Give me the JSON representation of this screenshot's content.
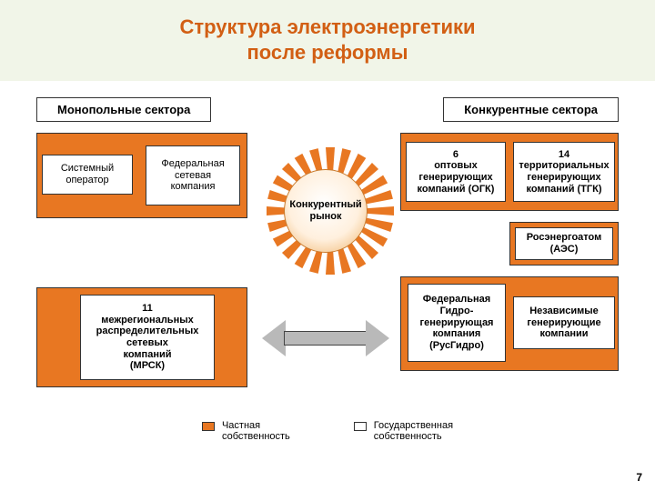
{
  "title": {
    "line1": "Структура электроэнергетики",
    "line2": "после реформы",
    "color": "#d25f14",
    "fontsize": 22,
    "band_bg": "#f1f5e8"
  },
  "sector_headers": {
    "left": "Монопольные сектора",
    "right": "Конкурентные сектора"
  },
  "colors": {
    "orange": "#e87722",
    "white": "#ffffff",
    "arrow": "#b9b9b9",
    "border": "#333333"
  },
  "boxes": {
    "systemOperator": "Системный\nоператор",
    "federalGrid": "Федеральная\nсетевая\nкомпания",
    "sunLabel": "Конкурентный рынок",
    "ogk": "6\nоптовых\nгенерирующих\nкомпаний (ОГК)",
    "tgk": "14\nтерриториальных\nгенерирующих\nкомпаний (ТГК)",
    "rosenergoatom": "Росэнергоатом\n(АЭС)",
    "rushydro": "Федеральная\nГидро-\nгенерирующая\nкомпания\n(РусГидро)",
    "independents": "Независимые\nгенерирующие\nкомпании",
    "mrsk": "11\nмежрегиональных\nраспределительных\nсетевых\nкомпаний\n(МРСК)"
  },
  "legend": {
    "private": "Частная\nсобственность",
    "state": "Государственная\nсобственность"
  },
  "layout": {
    "sun": {
      "ray_count": 24
    }
  },
  "page_number": "7"
}
